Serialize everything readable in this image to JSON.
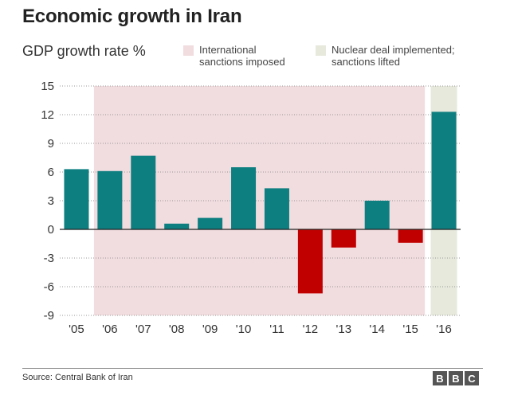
{
  "title": "Economic growth in Iran",
  "subtitle": "GDP growth rate %",
  "legend": [
    {
      "label_line1": "International",
      "label_line2": "sanctions imposed",
      "color": "#f1dcdf"
    },
    {
      "label_line1": "Nuclear deal implemented;",
      "label_line2": "sanctions lifted",
      "color": "#e6e9dc"
    }
  ],
  "source": "Source: Central Bank of Iran",
  "logo": [
    "B",
    "B",
    "C"
  ],
  "colors": {
    "positive": "#0e7f80",
    "negative": "#c00000",
    "sanctions": "#f1dcdf",
    "lifted": "#e6e9dc",
    "grid": "#999999"
  },
  "chart_data": {
    "type": "bar",
    "title": "Economic growth in Iran",
    "ylabel": "GDP growth rate %",
    "xlabel": "",
    "categories": [
      "'05",
      "'06",
      "'07",
      "'08",
      "'09",
      "'10",
      "'11",
      "'12",
      "'13",
      "'14",
      "'15",
      "'16"
    ],
    "values": [
      6.3,
      6.1,
      7.7,
      0.6,
      1.2,
      6.5,
      4.3,
      -6.7,
      -1.9,
      3.0,
      -1.4,
      12.3
    ],
    "ylim": [
      -9,
      15
    ],
    "yticks": [
      -9,
      -6,
      -3,
      0,
      3,
      6,
      9,
      12,
      15
    ],
    "sanctions_period": [
      "'06",
      "'15"
    ],
    "lifted_period": [
      "'16",
      "'16"
    ],
    "grid": true
  }
}
